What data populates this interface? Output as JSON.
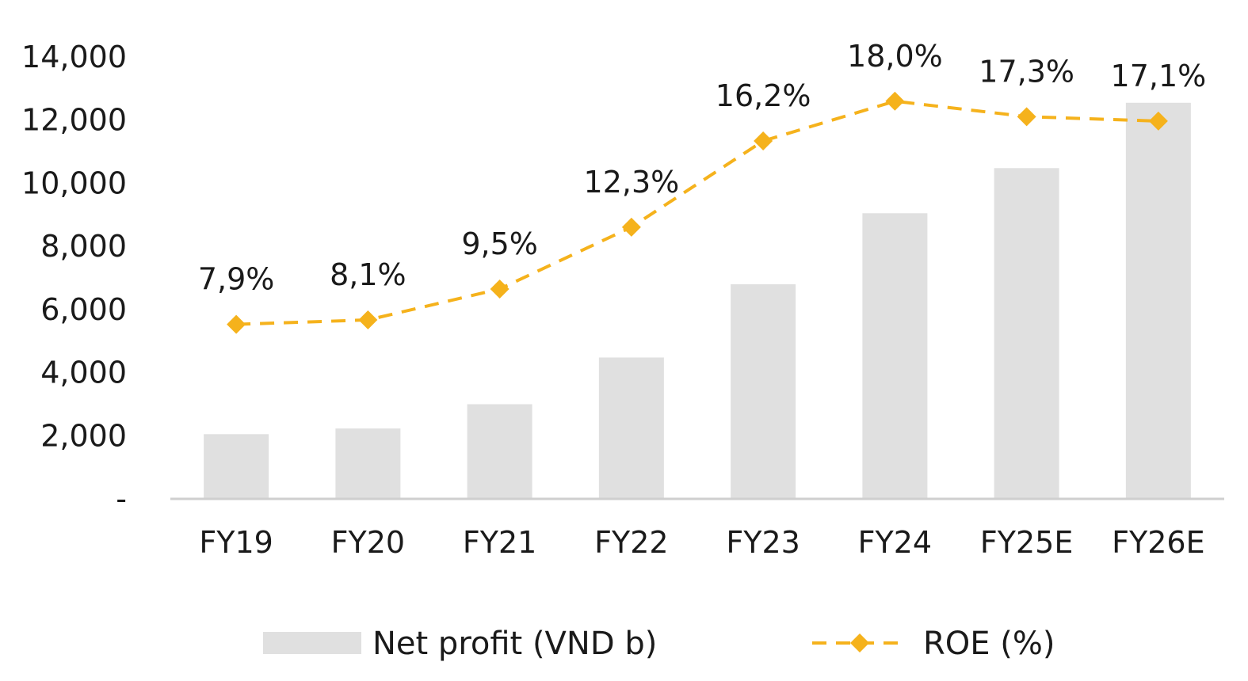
{
  "chart_data": {
    "type": "bar",
    "categories": [
      "FY19",
      "FY20",
      "FY21",
      "FY22",
      "FY23",
      "FY24",
      "FY25E",
      "FY26E"
    ],
    "series": [
      {
        "name": "Net profit (VND b)",
        "type": "bar",
        "axis": "left",
        "color": "#e0e0e0",
        "values": [
          2050,
          2230,
          3000,
          4480,
          6800,
          9050,
          10480,
          12550
        ]
      },
      {
        "name": "ROE (%)",
        "type": "line",
        "axis": "right",
        "style": "dashed",
        "marker": "diamond",
        "color": "#f5b21c",
        "values": [
          7.9,
          8.1,
          9.5,
          12.3,
          16.2,
          18.0,
          17.3,
          17.1
        ],
        "data_labels": [
          "7,9%",
          "8,1%",
          "9,5%",
          "12,3%",
          "16,2%",
          "18,0%",
          "17,3%",
          "17,1%"
        ]
      }
    ],
    "ylim": [
      0,
      14000
    ],
    "yticks": [
      "-",
      "2,000",
      "4,000",
      "6,000",
      "8,000",
      "10,000",
      "12,000",
      "14,000"
    ],
    "y2lim": [
      0,
      20
    ],
    "y2_axis_visible": false,
    "grid": false,
    "legend": "bottom",
    "title": "",
    "xlabel": "",
    "ylabel": ""
  }
}
